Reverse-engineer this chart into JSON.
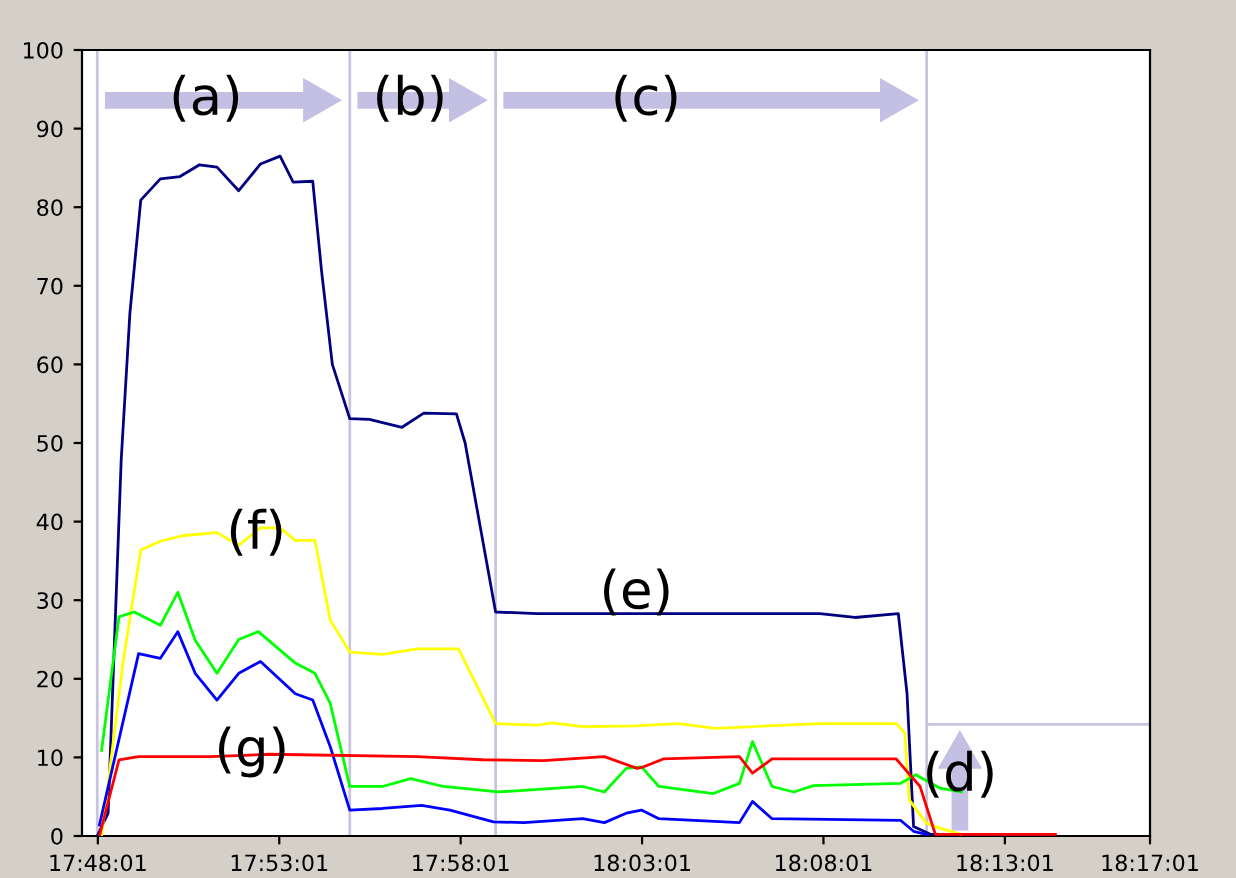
{
  "chart_data": {
    "type": "line",
    "xlim": [
      17.793,
      18.28361
    ],
    "ylim": [
      0,
      100
    ],
    "xticks": [
      {
        "value": 17.80028,
        "label": "17:48:01"
      },
      {
        "value": 17.88361,
        "label": "17:53:01"
      },
      {
        "value": 17.96694,
        "label": "17:58:01"
      },
      {
        "value": 18.05028,
        "label": "18:03:01"
      },
      {
        "value": 18.13361,
        "label": "18:08:01"
      },
      {
        "value": 18.21694,
        "label": "18:13:01"
      },
      {
        "value": 18.28361,
        "label": "18:17:01"
      }
    ],
    "yticks": [
      0,
      10,
      20,
      30,
      40,
      50,
      60,
      70,
      80,
      90,
      100
    ],
    "grid": false,
    "legend": false,
    "marker": "none",
    "line_style": "solid",
    "series": [
      {
        "color": "#000080",
        "x": [
          17.8,
          17.805,
          17.811,
          17.815,
          17.82,
          17.829,
          17.838,
          17.847,
          17.855,
          17.865,
          17.875,
          17.884,
          17.89,
          17.899,
          17.903,
          17.908,
          17.916,
          17.925,
          17.94,
          17.95,
          17.965,
          17.969,
          17.983,
          18.002,
          18.039,
          18.095,
          18.132,
          18.148,
          18.168,
          18.172,
          18.175,
          18.183,
          18.24
        ],
        "values": [
          0,
          2.9,
          47.8,
          66.5,
          80.9,
          83.6,
          83.9,
          85.4,
          85.1,
          82.1,
          85.5,
          86.5,
          83.2,
          83.3,
          72,
          60,
          53.1,
          53,
          52,
          53.8,
          53.7,
          50,
          28.5,
          28.3,
          28.3,
          28.3,
          28.3,
          27.8,
          28.3,
          18.1,
          1.2,
          0.2,
          0.2
        ]
      },
      {
        "color": "#ffff00",
        "x": [
          17.802,
          17.812,
          17.82,
          17.829,
          17.839,
          17.855,
          17.865,
          17.875,
          17.884,
          17.891,
          17.9,
          17.907,
          17.916,
          17.931,
          17.947,
          17.966,
          17.983,
          18.002,
          18.009,
          18.023,
          18.047,
          18.067,
          18.084,
          18.132,
          18.167,
          18.171,
          18.173,
          18.181,
          18.187,
          18.197
        ],
        "values": [
          0,
          22.4,
          36.4,
          37.5,
          38.2,
          38.6,
          37.0,
          39.2,
          39.2,
          37.6,
          37.6,
          27.5,
          23.4,
          23.1,
          23.8,
          23.8,
          14.3,
          14.1,
          14.4,
          13.9,
          14.0,
          14.3,
          13.7,
          14.3,
          14.3,
          13.1,
          4.6,
          1.6,
          1.0,
          0.2
        ]
      },
      {
        "color": "#00ff00",
        "x": [
          17.802,
          17.81,
          17.817,
          17.829,
          17.837,
          17.845,
          17.855,
          17.865,
          17.874,
          17.891,
          17.9,
          17.907,
          17.916,
          17.931,
          17.944,
          17.959,
          17.984,
          17.996,
          18.023,
          18.033,
          18.043,
          18.05,
          18.058,
          18.083,
          18.095,
          18.101,
          18.11,
          18.12,
          18.129,
          18.169,
          18.176,
          18.187,
          18.197
        ],
        "values": [
          10.9,
          27.9,
          28.5,
          26.8,
          31.0,
          24.9,
          20.7,
          25.0,
          26.0,
          22.0,
          20.7,
          16.9,
          6.3,
          6.3,
          7.3,
          6.3,
          5.6,
          5.8,
          6.3,
          5.6,
          8.6,
          8.8,
          6.3,
          5.4,
          6.7,
          12.0,
          6.3,
          5.6,
          6.4,
          6.7,
          7.8,
          6.1,
          5.6
        ]
      },
      {
        "color": "#0000ff",
        "x": [
          17.801,
          17.819,
          17.829,
          17.837,
          17.845,
          17.855,
          17.865,
          17.875,
          17.891,
          17.899,
          17.907,
          17.916,
          17.931,
          17.949,
          17.962,
          17.982,
          17.996,
          18.023,
          18.033,
          18.043,
          18.05,
          18.058,
          18.095,
          18.101,
          18.11,
          18.169,
          18.175,
          18.181
        ],
        "values": [
          1.4,
          23.2,
          22.6,
          26.0,
          20.7,
          17.3,
          20.7,
          22.2,
          18.1,
          17.3,
          11.4,
          3.3,
          3.5,
          3.9,
          3.3,
          1.8,
          1.7,
          2.2,
          1.7,
          2.9,
          3.3,
          2.2,
          1.7,
          4.4,
          2.2,
          2.0,
          0.6,
          0.2
        ]
      },
      {
        "color": "#ff0000",
        "x": [
          17.801,
          17.81,
          17.819,
          17.852,
          17.879,
          17.947,
          17.977,
          18.005,
          18.033,
          18.048,
          18.051,
          18.06,
          18.095,
          18.101,
          18.11,
          18.167,
          18.178,
          18.185,
          18.24
        ],
        "values": [
          0,
          9.7,
          10.1,
          10.1,
          10.4,
          10.1,
          9.7,
          9.6,
          10.1,
          8.6,
          8.8,
          9.8,
          10.1,
          8.0,
          9.8,
          9.8,
          6.3,
          0.2,
          0.2
        ]
      }
    ],
    "ref_lines": [
      {
        "axis": "x",
        "value": 17.8,
        "color": "#c8c4e0"
      },
      {
        "axis": "x",
        "value": 17.916,
        "color": "#c8c4e0"
      },
      {
        "axis": "x",
        "value": 17.983,
        "color": "#c8c4e0"
      },
      {
        "axis": "x",
        "value": 18.181,
        "color": "#c8c4e0"
      },
      {
        "axis": "y",
        "value": 14.2,
        "color": "#c8c4e0"
      }
    ],
    "annotations": [
      "(a)",
      "(b)",
      "(c)",
      "(d)",
      "(e)",
      {
        "text": "(f)",
        "x": 17.873,
        "y": 38.4
      },
      {
        "text": "(g)",
        "x": 17.871,
        "y": 10.7
      }
    ]
  }
}
